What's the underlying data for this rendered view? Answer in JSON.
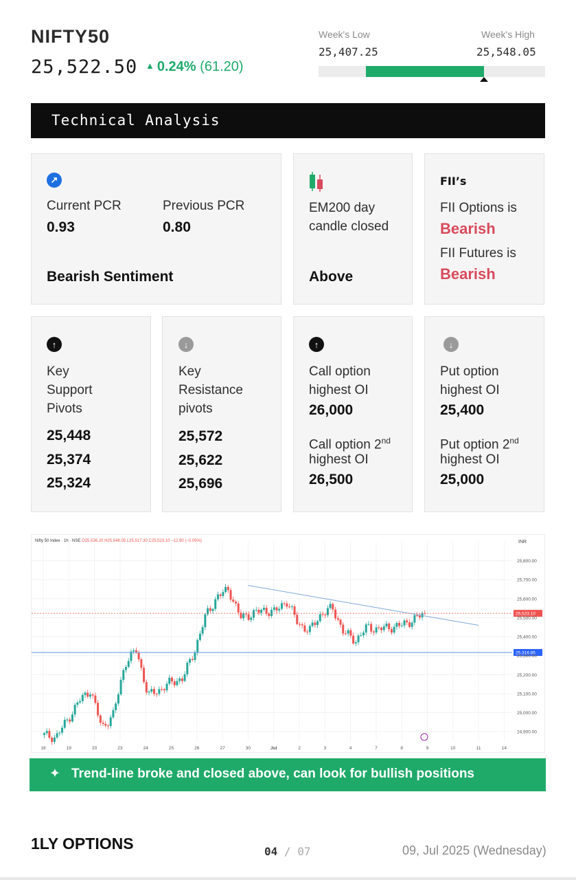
{
  "header": {
    "ticker": "NIFTY50",
    "price": "25,522.50",
    "change_pct": "0.24%",
    "change_abs": "(61.20)",
    "week_low_label": "Week's Low",
    "week_low_value": "25,407.25",
    "week_high_label": "Week's High",
    "week_high_value": "25,548.05",
    "week_range_position": 0.73
  },
  "banner": {
    "title": "Technical Analysis"
  },
  "pcr_card": {
    "current_label": "Current PCR",
    "current_value": "0.93",
    "previous_label": "Previous PCR",
    "previous_value": "0.80",
    "sentiment": "Bearish Sentiment",
    "icon": "arrow-up-right-icon"
  },
  "ema_card": {
    "label_line1": "EM200 day",
    "label_line2": "candle closed",
    "value": "Above",
    "icon": "candlestick-icon"
  },
  "fii_card": {
    "heading": "FII’s",
    "options_label": "FII Options is",
    "options_value": "Bearish",
    "futures_label": "FII Futures is",
    "futures_value": "Bearish"
  },
  "support_card": {
    "label_line1": "Key",
    "label_line2": "Support",
    "label_line3": "Pivots",
    "values": [
      "25,448",
      "25,374",
      "25,324"
    ]
  },
  "resistance_card": {
    "label_line1": "Key",
    "label_line2": "Resistance",
    "label_line3": "pivots",
    "values": [
      "25,572",
      "25,622",
      "25,696"
    ]
  },
  "call_card": {
    "label1_line1": "Call option",
    "label1_line2": "highest OI",
    "value1": "26,000",
    "label2_line1": "Call option 2",
    "label2_sup": "nd",
    "label2_line2": "highest OI",
    "value2": "26,500"
  },
  "put_card": {
    "label1_line1": "Put option",
    "label1_line2": "highest OI",
    "value1": "25,400",
    "label2_line1": "Put option 2",
    "label2_sup": "nd",
    "label2_line2": "highest OI",
    "value2": "25,000"
  },
  "chart": {
    "header_text": "Nifty 50 Index · 1h · NSE",
    "ohlc": {
      "o": "O25,536.20",
      "h": "H25,548.05",
      "l": "L25,517.30",
      "c": "C25,523.10",
      "chg": "−12.90 (−0.05%)"
    },
    "currency": "INR",
    "price_tag": "25,523.10",
    "support_tag": "25,316.85",
    "colors": {
      "up": "#26a69a",
      "down": "#ef5350",
      "trend": "#7fa7d9",
      "support": "#6f9fe0"
    }
  },
  "chart_data": {
    "type": "candlestick",
    "y_ticks": [
      "25,800.00",
      "25,700.00",
      "25,600.00",
      "25,500.00",
      "25,400.00",
      "25,300.00",
      "25,200.00",
      "25,100.00",
      "25,000.00",
      "24,900.00"
    ],
    "x_ticks": [
      "18",
      "19",
      "20",
      "23",
      "24",
      "25",
      "26",
      "27",
      "30",
      "Jul",
      "2",
      "3",
      "4",
      "7",
      "8",
      "9",
      "10",
      "11",
      "14"
    ],
    "ylim": [
      24850,
      25900
    ],
    "last_close": 25523.1,
    "support_level": 25316.85,
    "trendline": [
      [
        30,
        25670
      ],
      [
        11,
        25460
      ]
    ],
    "close_path": [
      24880,
      24870,
      24960,
      25060,
      25120,
      24920,
      24990,
      25260,
      25330,
      25090,
      25120,
      25160,
      25180,
      25320,
      25510,
      25610,
      25650,
      25500,
      25520,
      25540,
      25530,
      25590,
      25470,
      25430,
      25520,
      25550,
      25420,
      25380,
      25450,
      25440,
      25450,
      25460,
      25490,
      25523
    ]
  },
  "footer_banner": {
    "text": "Trend-line broke and closed above, can look for bullish positions",
    "icon": "sparkle-icon"
  },
  "footer": {
    "brand": "1LY OPTIONS",
    "page_current": "04",
    "page_sep": "/",
    "page_total": "07",
    "date": "09, Jul 2025 (Wednesday)"
  }
}
